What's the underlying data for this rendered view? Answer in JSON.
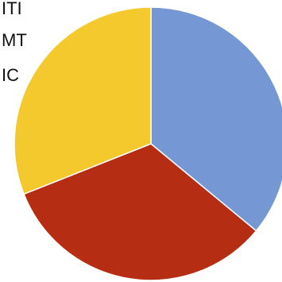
{
  "chart_data": {
    "type": "pie",
    "title": "",
    "categories": [
      "ITI",
      "MT",
      "IC"
    ],
    "values": [
      36,
      33,
      31
    ],
    "colors": [
      "#7598d4",
      "#b52d13",
      "#f4c92e"
    ],
    "legend": {
      "placement": "top-left",
      "visible_labels": [
        "ITI",
        "MT",
        "IC"
      ]
    }
  }
}
